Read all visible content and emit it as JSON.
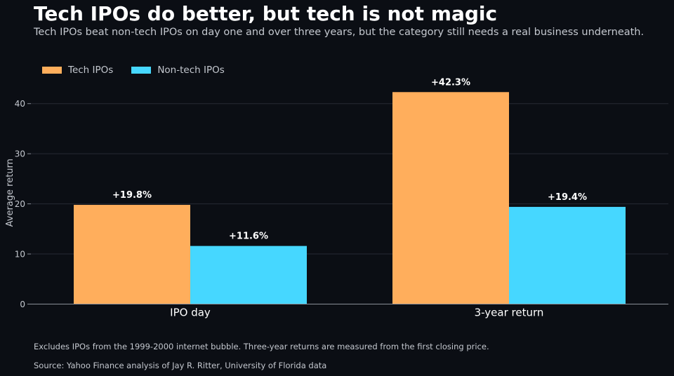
{
  "title": "Tech IPOs do better, but tech is not magic",
  "subtitle": "Tech IPOs beat non-tech IPOs on day one and over three years, but the category still needs a real business underneath.",
  "note": "Excludes IPOs from the 1999-2000 internet bubble. Three-year returns are measured from the first closing price.",
  "source": "Source: Yahoo Finance analysis of Jay R. Ritter, University of Florida data",
  "colors": {
    "background": "#0b0e14",
    "tech": "#ffae5c",
    "nontech": "#46d7ff",
    "grid": "#262a33",
    "text_muted": "#c4c8cf"
  },
  "chart_data": {
    "type": "bar",
    "categories": [
      "IPO day",
      "3-year return"
    ],
    "series": [
      {
        "name": "Tech IPOs",
        "values": [
          19.8,
          42.3
        ],
        "labels": [
          "+19.8%",
          "+42.3%"
        ],
        "color": "#ffae5c"
      },
      {
        "name": "Non-tech IPOs",
        "values": [
          11.6,
          19.4
        ],
        "labels": [
          "+11.6%",
          "+19.4%"
        ],
        "color": "#46d7ff"
      }
    ],
    "ylabel": "Average return",
    "xlabel": "",
    "ylim": [
      0,
      45
    ],
    "yticks": [
      0,
      10,
      20,
      30,
      40
    ],
    "grid": true,
    "legend": "top-left"
  }
}
